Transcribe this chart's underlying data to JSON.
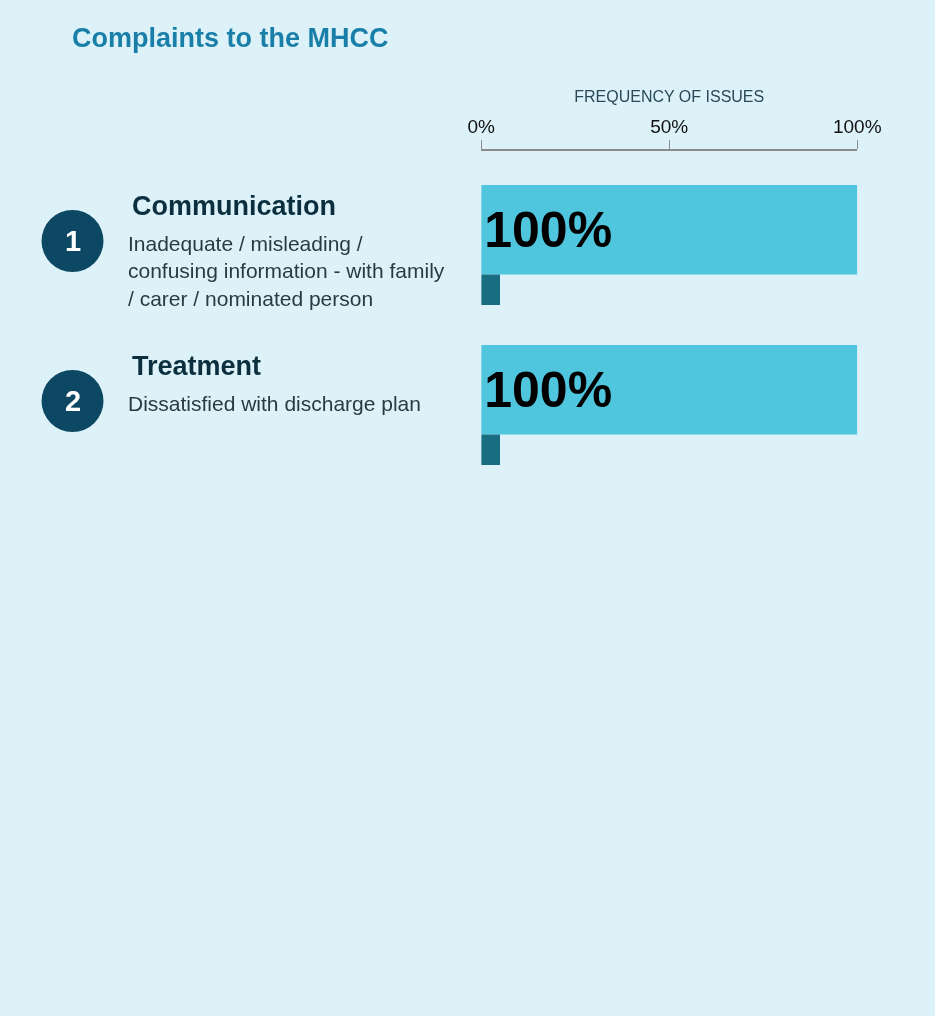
{
  "chart_data": {
    "type": "bar",
    "orientation": "horizontal",
    "title": "Complaints to the MHCC",
    "xlabel": "FREQUENCY OF ISSUES",
    "categories": [
      "Communication",
      "Treatment"
    ],
    "series": [
      {
        "color": "#4fc5de",
        "values": [
          100,
          100
        ],
        "value_labels": [
          "100%",
          "100%"
        ]
      },
      {
        "color": "#186e80",
        "values": [
          5,
          5
        ]
      }
    ],
    "xlim": [
      0,
      100
    ],
    "xticks": [
      {
        "value": 0,
        "label": "0%"
      },
      {
        "value": 50,
        "label": "50%"
      },
      {
        "value": 100,
        "label": "100%"
      }
    ],
    "grid": false,
    "annotations": [
      "1",
      "Inadequate / misleading /\nconfusing information - with family\n/ carer / nominated person",
      "2",
      "Dissatisfied with discharge plan"
    ]
  }
}
